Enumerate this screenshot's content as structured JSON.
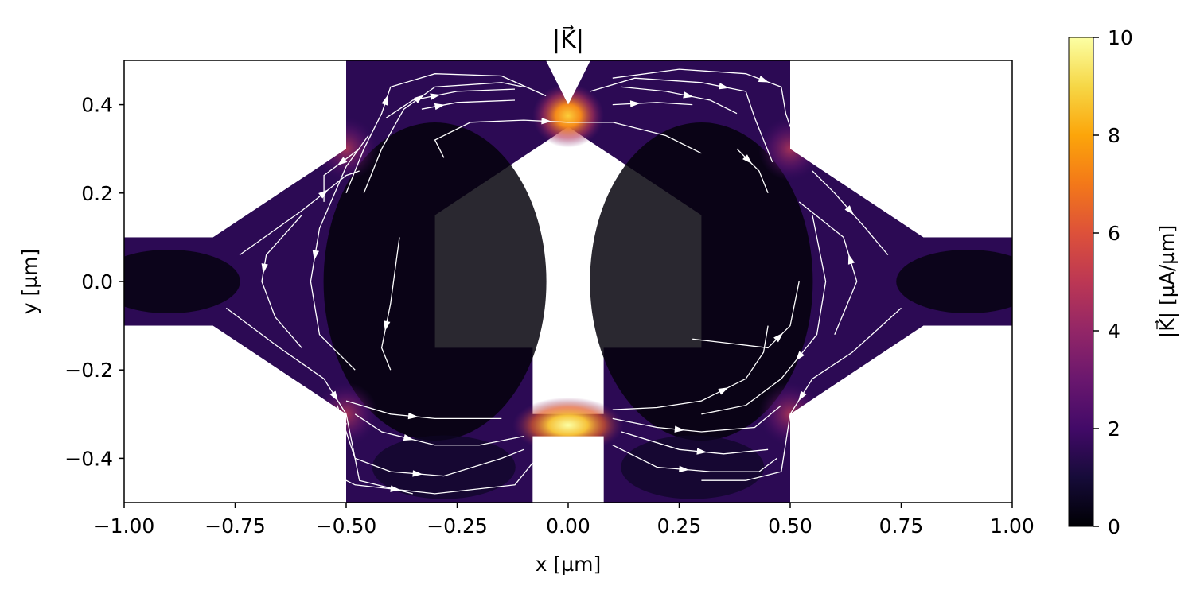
{
  "chart_data": {
    "type": "heatmap",
    "title": "|K⃗|",
    "xlabel": "x [µm]",
    "ylabel": "y [µm]",
    "xlim": [
      -1.0,
      1.0
    ],
    "ylim": [
      -0.5,
      0.5
    ],
    "x_ticks": [
      -1.0,
      -0.75,
      -0.5,
      -0.25,
      0.0,
      0.25,
      0.5,
      0.75,
      1.0
    ],
    "x_tick_labels": [
      "−1.00",
      "−0.75",
      "−0.50",
      "−0.25",
      "0.00",
      "0.25",
      "0.50",
      "0.75",
      "1.00"
    ],
    "y_ticks": [
      -0.4,
      -0.2,
      0.0,
      0.2,
      0.4
    ],
    "y_tick_labels": [
      "−0.4",
      "−0.2",
      "0.0",
      "0.2",
      "0.4"
    ],
    "grid": false,
    "colormap": "inferno",
    "colorbar": {
      "label": "|K⃗| [µA/µm]",
      "range": [
        0,
        10
      ],
      "ticks": [
        0,
        2,
        4,
        6,
        8,
        10
      ],
      "tick_labels": [
        "0",
        "2",
        "4",
        "6",
        "8",
        "10"
      ]
    },
    "film_outline": [
      [
        -1.0,
        0.1
      ],
      [
        -0.8,
        0.1
      ],
      [
        -0.5,
        0.3
      ],
      [
        -0.5,
        0.5
      ],
      [
        -0.05,
        0.5
      ],
      [
        0.0,
        0.4
      ],
      [
        0.05,
        0.5
      ],
      [
        0.5,
        0.5
      ],
      [
        0.5,
        0.3
      ],
      [
        0.8,
        0.1
      ],
      [
        1.0,
        0.1
      ],
      [
        1.0,
        -0.1
      ],
      [
        0.8,
        -0.1
      ],
      [
        0.5,
        -0.3
      ],
      [
        0.5,
        -0.5
      ],
      [
        0.08,
        -0.5
      ],
      [
        0.08,
        -0.35
      ],
      [
        -0.08,
        -0.35
      ],
      [
        -0.08,
        -0.5
      ],
      [
        -0.5,
        -0.5
      ],
      [
        -0.5,
        -0.3
      ],
      [
        -0.8,
        -0.1
      ],
      [
        -1.0,
        -0.1
      ]
    ],
    "hole_outline": [
      [
        -0.3,
        0.15
      ],
      [
        0.0,
        0.35
      ],
      [
        0.3,
        0.15
      ],
      [
        0.3,
        -0.15
      ],
      [
        0.08,
        -0.15
      ],
      [
        0.08,
        -0.3
      ],
      [
        -0.08,
        -0.3
      ],
      [
        -0.08,
        -0.15
      ],
      [
        -0.3,
        -0.15
      ]
    ],
    "hotspots": [
      {
        "x": 0.0,
        "y": 0.375,
        "value": 9.0
      },
      {
        "x": 0.0,
        "y": -0.325,
        "value": 10.0
      },
      {
        "x": -0.5,
        "y": 0.3,
        "value": 3.5
      },
      {
        "x": 0.5,
        "y": 0.3,
        "value": 3.5
      },
      {
        "x": -0.5,
        "y": -0.3,
        "value": 3.5
      },
      {
        "x": 0.5,
        "y": -0.3,
        "value": 3.5
      }
    ],
    "streamlines": [
      [
        [
          -0.28,
          0.28
        ],
        [
          -0.3,
          0.32
        ],
        [
          -0.22,
          0.36
        ],
        [
          -0.1,
          0.365
        ],
        [
          0.0,
          0.36
        ],
        [
          0.1,
          0.36
        ],
        [
          0.22,
          0.33
        ],
        [
          0.3,
          0.29
        ]
      ],
      [
        [
          -0.33,
          0.39
        ],
        [
          -0.25,
          0.405
        ],
        [
          -0.12,
          0.41
        ]
      ],
      [
        [
          -0.41,
          0.37
        ],
        [
          -0.35,
          0.41
        ],
        [
          -0.25,
          0.43
        ],
        [
          -0.12,
          0.435
        ]
      ],
      [
        [
          -0.46,
          0.2
        ],
        [
          -0.42,
          0.3
        ],
        [
          -0.37,
          0.39
        ],
        [
          -0.3,
          0.44
        ],
        [
          -0.15,
          0.45
        ],
        [
          -0.1,
          0.44
        ]
      ],
      [
        [
          -0.5,
          0.2
        ],
        [
          -0.46,
          0.3
        ],
        [
          -0.42,
          0.38
        ],
        [
          -0.4,
          0.44
        ],
        [
          -0.3,
          0.47
        ],
        [
          -0.15,
          0.465
        ],
        [
          -0.05,
          0.42
        ]
      ],
      [
        [
          0.1,
          0.4
        ],
        [
          0.2,
          0.405
        ],
        [
          0.28,
          0.4
        ]
      ],
      [
        [
          0.12,
          0.44
        ],
        [
          0.22,
          0.43
        ],
        [
          0.32,
          0.41
        ],
        [
          0.38,
          0.38
        ]
      ],
      [
        [
          0.05,
          0.43
        ],
        [
          0.15,
          0.46
        ],
        [
          0.3,
          0.45
        ],
        [
          0.4,
          0.43
        ],
        [
          0.42,
          0.37
        ],
        [
          0.46,
          0.27
        ]
      ],
      [
        [
          0.1,
          0.46
        ],
        [
          0.25,
          0.48
        ],
        [
          0.4,
          0.47
        ],
        [
          0.48,
          0.44
        ],
        [
          0.49,
          0.38
        ],
        [
          0.5,
          0.35
        ]
      ],
      [
        [
          0.38,
          0.3
        ],
        [
          0.43,
          0.25
        ],
        [
          0.45,
          0.2
        ]
      ],
      [
        [
          -0.74,
          0.06
        ],
        [
          -0.6,
          0.16
        ],
        [
          -0.5,
          0.24
        ],
        [
          -0.47,
          0.25
        ]
      ],
      [
        [
          -0.6,
          0.15
        ],
        [
          -0.68,
          0.06
        ],
        [
          -0.69,
          0.0
        ],
        [
          -0.66,
          -0.08
        ],
        [
          -0.6,
          -0.15
        ]
      ],
      [
        [
          -0.47,
          0.3
        ],
        [
          -0.55,
          0.24
        ],
        [
          -0.55,
          0.18
        ]
      ],
      [
        [
          -0.45,
          0.33
        ],
        [
          -0.5,
          0.26
        ],
        [
          -0.56,
          0.12
        ],
        [
          -0.58,
          0.0
        ],
        [
          -0.56,
          -0.12
        ],
        [
          -0.48,
          -0.2
        ]
      ],
      [
        [
          -0.38,
          0.1
        ],
        [
          -0.4,
          -0.05
        ],
        [
          -0.42,
          -0.15
        ],
        [
          -0.4,
          -0.2
        ]
      ],
      [
        [
          -0.5,
          -0.27
        ],
        [
          -0.4,
          -0.3
        ],
        [
          -0.3,
          -0.31
        ],
        [
          -0.2,
          -0.31
        ],
        [
          -0.15,
          -0.31
        ]
      ],
      [
        [
          -0.48,
          -0.3
        ],
        [
          -0.42,
          -0.34
        ],
        [
          -0.3,
          -0.37
        ],
        [
          -0.2,
          -0.37
        ],
        [
          -0.1,
          -0.35
        ]
      ],
      [
        [
          -0.52,
          -0.28
        ],
        [
          -0.48,
          -0.4
        ],
        [
          -0.4,
          -0.43
        ],
        [
          -0.28,
          -0.44
        ],
        [
          -0.15,
          -0.4
        ],
        [
          -0.1,
          -0.38
        ]
      ],
      [
        [
          -0.5,
          -0.32
        ],
        [
          -0.52,
          -0.44
        ],
        [
          -0.48,
          -0.46
        ],
        [
          -0.3,
          -0.48
        ],
        [
          -0.12,
          -0.46
        ],
        [
          -0.08,
          -0.41
        ]
      ],
      [
        [
          -0.77,
          -0.06
        ],
        [
          -0.65,
          -0.15
        ],
        [
          -0.55,
          -0.22
        ],
        [
          -0.5,
          -0.3
        ],
        [
          -0.49,
          -0.35
        ],
        [
          -0.47,
          -0.45
        ],
        [
          -0.35,
          -0.48
        ]
      ],
      [
        [
          0.75,
          -0.06
        ],
        [
          0.64,
          -0.16
        ],
        [
          0.55,
          -0.22
        ],
        [
          0.5,
          -0.3
        ],
        [
          0.48,
          -0.43
        ],
        [
          0.4,
          -0.45
        ],
        [
          0.3,
          -0.45
        ]
      ],
      [
        [
          0.28,
          -0.13
        ],
        [
          0.45,
          -0.15
        ],
        [
          0.5,
          -0.1
        ],
        [
          0.52,
          0.0
        ]
      ],
      [
        [
          0.6,
          -0.12
        ],
        [
          0.65,
          0.0
        ],
        [
          0.62,
          0.1
        ],
        [
          0.52,
          0.18
        ]
      ],
      [
        [
          0.55,
          0.25
        ],
        [
          0.6,
          0.2
        ],
        [
          0.67,
          0.12
        ],
        [
          0.72,
          0.06
        ]
      ],
      [
        [
          0.55,
          0.15
        ],
        [
          0.58,
          0.0
        ],
        [
          0.56,
          -0.12
        ],
        [
          0.48,
          -0.22
        ],
        [
          0.4,
          -0.28
        ],
        [
          0.3,
          -0.3
        ]
      ],
      [
        [
          0.1,
          -0.29
        ],
        [
          0.2,
          -0.285
        ],
        [
          0.3,
          -0.27
        ],
        [
          0.4,
          -0.22
        ],
        [
          0.44,
          -0.16
        ],
        [
          0.45,
          -0.1
        ]
      ],
      [
        [
          0.1,
          -0.31
        ],
        [
          0.2,
          -0.33
        ],
        [
          0.3,
          -0.34
        ],
        [
          0.42,
          -0.33
        ],
        [
          0.48,
          -0.28
        ]
      ],
      [
        [
          0.12,
          -0.34
        ],
        [
          0.25,
          -0.38
        ],
        [
          0.35,
          -0.39
        ],
        [
          0.45,
          -0.38
        ]
      ],
      [
        [
          0.1,
          -0.37
        ],
        [
          0.2,
          -0.42
        ],
        [
          0.32,
          -0.43
        ],
        [
          0.43,
          -0.43
        ],
        [
          0.47,
          -0.4
        ]
      ]
    ]
  }
}
